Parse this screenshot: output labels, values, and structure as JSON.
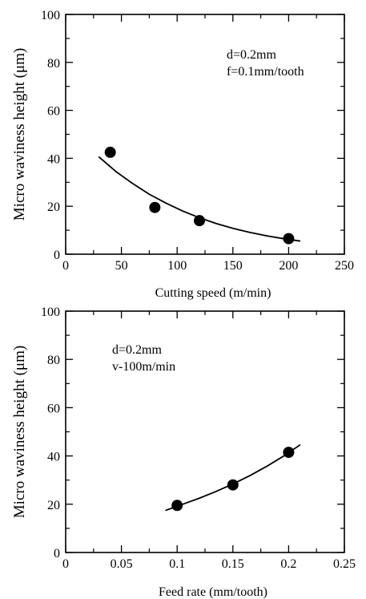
{
  "chart_data": [
    {
      "type": "scatter",
      "xlabel": "Cutting speed (m/min)",
      "ylabel": "Micro waviness height (μm)",
      "xlim": [
        0,
        250
      ],
      "ylim": [
        0,
        100
      ],
      "xticks": [
        0,
        50,
        100,
        150,
        200,
        250
      ],
      "yticks": [
        0,
        20,
        40,
        60,
        80,
        100
      ],
      "xtick_labels": [
        "0",
        "50",
        "100",
        "150",
        "200",
        "250"
      ],
      "ytick_labels": [
        "0",
        "20",
        "40",
        "60",
        "80",
        "100"
      ],
      "grid": false,
      "annotations": [
        "d=0.2mm",
        "f=0.1mm/tooth"
      ],
      "series": [
        {
          "points": [
            {
              "x": 40,
              "y": 42.5
            },
            {
              "x": 80,
              "y": 19.5
            },
            {
              "x": 120,
              "y": 14
            },
            {
              "x": 200,
              "y": 6.5
            }
          ],
          "fit_curve": [
            {
              "x": 30,
              "y": 40.5
            },
            {
              "x": 45,
              "y": 34.5
            },
            {
              "x": 60,
              "y": 29.5
            },
            {
              "x": 75,
              "y": 25
            },
            {
              "x": 90,
              "y": 21.3
            },
            {
              "x": 105,
              "y": 18
            },
            {
              "x": 120,
              "y": 15.2
            },
            {
              "x": 135,
              "y": 12.8
            },
            {
              "x": 150,
              "y": 10.8
            },
            {
              "x": 165,
              "y": 9.1
            },
            {
              "x": 180,
              "y": 7.7
            },
            {
              "x": 195,
              "y": 6.5
            },
            {
              "x": 210,
              "y": 5.5
            }
          ]
        }
      ]
    },
    {
      "type": "scatter",
      "xlabel": "Feed rate (mm/tooth)",
      "ylabel": "Micro waviness height (μm)",
      "xlim": [
        0,
        0.25
      ],
      "ylim": [
        0,
        100
      ],
      "xticks": [
        0,
        0.05,
        0.1,
        0.15,
        0.2,
        0.25
      ],
      "yticks": [
        0,
        20,
        40,
        60,
        80,
        100
      ],
      "xtick_labels": [
        "0",
        "0.05",
        "0.1",
        "0.15",
        "0.2",
        "0.25"
      ],
      "ytick_labels": [
        "0",
        "20",
        "40",
        "60",
        "80",
        "100"
      ],
      "grid": false,
      "annotations": [
        "d=0.2mm",
        "v-100m/min"
      ],
      "series": [
        {
          "points": [
            {
              "x": 0.1,
              "y": 19.5
            },
            {
              "x": 0.15,
              "y": 28
            },
            {
              "x": 0.2,
              "y": 41.5
            }
          ],
          "fit_curve": [
            {
              "x": 0.09,
              "y": 17.5
            },
            {
              "x": 0.105,
              "y": 20
            },
            {
              "x": 0.12,
              "y": 22.5
            },
            {
              "x": 0.135,
              "y": 25.3
            },
            {
              "x": 0.15,
              "y": 28.4
            },
            {
              "x": 0.165,
              "y": 31.8
            },
            {
              "x": 0.18,
              "y": 35.6
            },
            {
              "x": 0.195,
              "y": 39.8
            },
            {
              "x": 0.21,
              "y": 44.5
            }
          ]
        }
      ]
    }
  ]
}
